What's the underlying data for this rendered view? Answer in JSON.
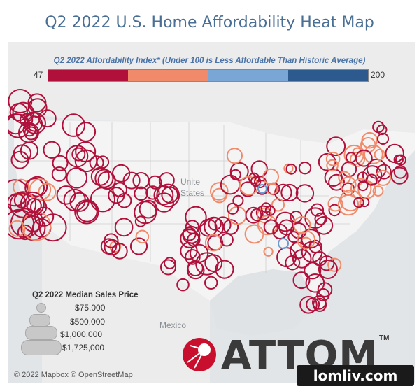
{
  "title": "Q2 2022 U.S. Home Affordability Heat Map",
  "scale": {
    "title": "Q2 2022 Affordability Index* (Under 100 is Less Affordable Than Historic Average)",
    "min": "47",
    "max": "200",
    "colors": [
      "#b0103a",
      "#f08a6a",
      "#7aa6d6",
      "#2d5a8e"
    ]
  },
  "labels": {
    "country_us": "Unite States",
    "mexico": "Mexico"
  },
  "legend": {
    "title": "Q2 2022 Median Sales Price",
    "items": [
      "$75,000",
      "$500,000",
      "$1,000,000",
      "$1,725,000"
    ]
  },
  "attribution": "© 2022 Mapbox © OpenStreetMap",
  "brand": "ATTOM",
  "brand_tm": "TM",
  "watermark": "lomliv.com",
  "colors": {
    "unaffordable": "#b0103a",
    "moderate": "#f08a6a",
    "affordable": "#6a9ad0"
  }
}
